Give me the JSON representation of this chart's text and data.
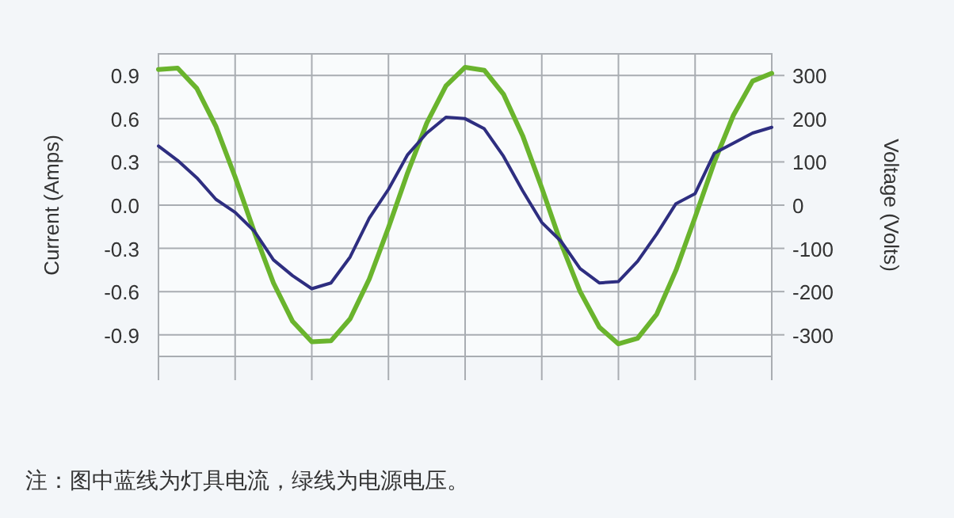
{
  "chart_data": {
    "type": "line",
    "ylabel": "Current (Amps)",
    "y2label": "Voltage (Volts)",
    "annotations": [
      "注：图中蓝线为灯具电流，绿线为电源电压。"
    ],
    "categories": [
      null,
      null,
      null,
      null,
      null,
      null,
      null,
      null,
      null,
      null,
      null,
      null,
      null,
      null,
      null,
      null,
      null,
      null,
      null,
      null,
      null,
      null,
      null,
      null,
      null,
      null,
      null,
      null,
      null,
      null,
      null,
      null,
      null
    ],
    "ylim": [
      -1.05,
      1.05
    ],
    "yticks": [
      {
        "value": 0.9,
        "label": "0.9"
      },
      {
        "value": 0.6,
        "label": "0.6"
      },
      {
        "value": 0.3,
        "label": "0.3"
      },
      {
        "value": 0,
        "label": "0.0"
      },
      {
        "value": -0.3,
        "label": "-0.3"
      },
      {
        "value": -0.6,
        "label": "-0.6"
      },
      {
        "value": -0.9,
        "label": "-0.9"
      }
    ],
    "y2lim": [
      -350,
      350
    ],
    "y2ticks": [
      300,
      200,
      100,
      0,
      -100,
      -200,
      -300
    ],
    "grid": true,
    "line_style": "solid",
    "series": [
      {
        "color": "#6ab42d",
        "axis": "y2",
        "values": [
          314,
          317,
          270,
          182,
          65,
          -62,
          -180,
          -269,
          -316,
          -314,
          -263,
          -171,
          -52,
          75,
          190,
          276,
          319,
          312,
          257,
          161,
          40,
          -88,
          -200,
          -282,
          -321,
          -308,
          -252,
          -151,
          -28,
          99,
          208,
          287,
          305
        ]
      },
      {
        "color": "#2e2e80",
        "axis": "y",
        "values": [
          0.41,
          0.31,
          0.19,
          0.04,
          -0.05,
          -0.18,
          -0.38,
          -0.49,
          -0.58,
          -0.54,
          -0.36,
          -0.09,
          0.11,
          0.35,
          0.5,
          0.61,
          0.6,
          0.53,
          0.34,
          0.1,
          -0.12,
          -0.25,
          -0.44,
          -0.54,
          -0.53,
          -0.39,
          -0.2,
          0.01,
          0.08,
          0.36,
          0.43,
          0.5,
          0.54
        ]
      }
    ]
  }
}
